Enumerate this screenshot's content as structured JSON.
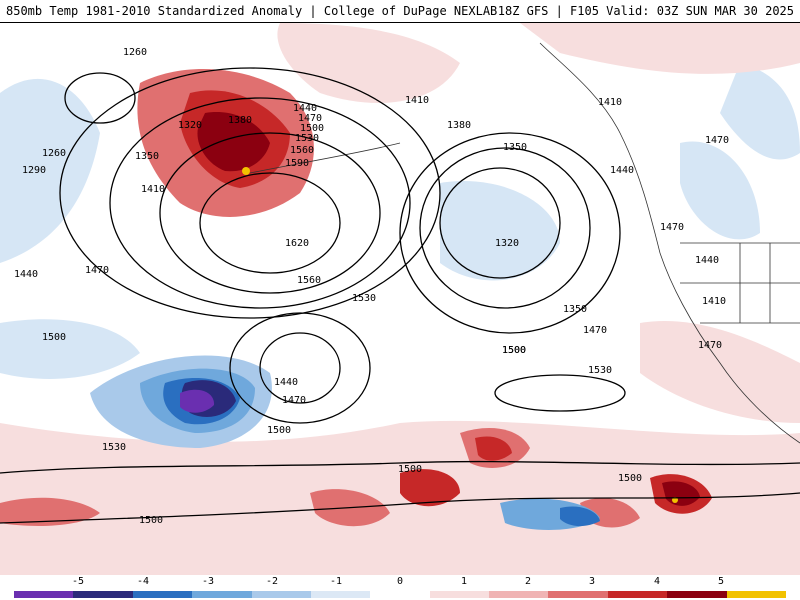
{
  "header": {
    "title_left": "850mb Temp 1981-2010 Standardized Anomaly | College of DuPage NEXLAB",
    "title_right": "18Z GFS | F105 Valid: 03Z SUN MAR 30 2025"
  },
  "colorbar": {
    "ticks": [
      "-5",
      "-4",
      "-3",
      "-2",
      "-1",
      "0",
      "1",
      "2",
      "3",
      "4",
      "5"
    ],
    "colors": [
      "#6a2fb0",
      "#2a2a7a",
      "#2a6fc0",
      "#6fa8dc",
      "#a9c9ea",
      "#dce8f5",
      "#ffffff",
      "#f7dede",
      "#f0b4b4",
      "#e07070",
      "#c62828",
      "#8b0010",
      "#f2c200"
    ]
  },
  "map": {
    "contour_labels": [
      "1260",
      "1320",
      "1380",
      "1440",
      "1470",
      "1500",
      "1530",
      "1560",
      "1590",
      "1620",
      "1560",
      "1530",
      "1500",
      "1470",
      "1440",
      "1410",
      "1350",
      "1290",
      "1260",
      "1410",
      "1380",
      "1350",
      "1320",
      "1350",
      "1410",
      "1470",
      "1440",
      "1470",
      "1440",
      "1410",
      "1470",
      "1470",
      "1500",
      "1530",
      "1500",
      "1470",
      "1440",
      "1500",
      "1530",
      "1500",
      "1500",
      "1500"
    ],
    "colors": {
      "warm_strong": "#8b0010",
      "warm": "#c62828",
      "warm_mid": "#e07070",
      "warm_light": "#f7dede",
      "cool_light": "#d6e6f5",
      "cool": "#6fa8dc",
      "cool_strong": "#2a6fc0",
      "cool_deep": "#2a2a7a",
      "extreme_cold": "#6a2fb0",
      "extreme_warm": "#f2c200",
      "contour": "#000000"
    }
  }
}
